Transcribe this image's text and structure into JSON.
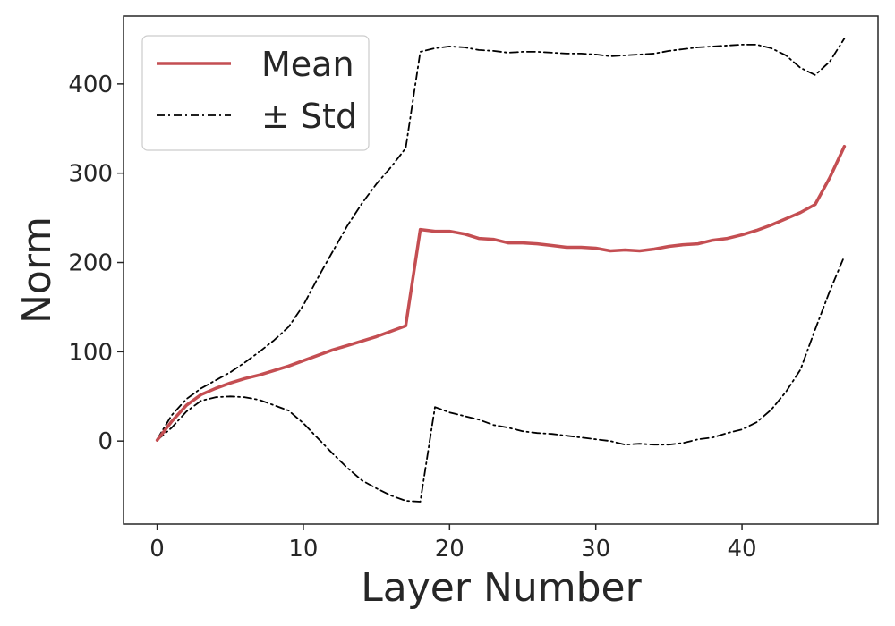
{
  "chart_data": {
    "type": "line",
    "title": "",
    "xlabel": "Layer Number",
    "ylabel": "Norm",
    "xlim": [
      -2.3,
      49.3
    ],
    "ylim": [
      -93,
      476
    ],
    "xticks": [
      0,
      10,
      20,
      30,
      40
    ],
    "yticks": [
      0,
      100,
      200,
      300,
      400
    ],
    "xtick_labels": [
      "0",
      "10",
      "20",
      "30",
      "40"
    ],
    "ytick_labels": [
      "0",
      "100",
      "200",
      "300",
      "400"
    ],
    "grid": false,
    "legend_position": "top-left",
    "x": [
      0,
      1,
      2,
      3,
      4,
      5,
      6,
      7,
      8,
      9,
      10,
      11,
      12,
      13,
      14,
      15,
      16,
      17,
      18,
      19,
      20,
      21,
      22,
      23,
      24,
      25,
      26,
      27,
      28,
      29,
      30,
      31,
      32,
      33,
      34,
      35,
      36,
      37,
      38,
      39,
      40,
      41,
      42,
      43,
      44,
      45,
      46,
      47
    ],
    "series": [
      {
        "name": "Mean",
        "color": "#c44e52",
        "style": "solid",
        "values": [
          1,
          22,
          40,
          52,
          59,
          65,
          70,
          74,
          79,
          84,
          90,
          96,
          102,
          107,
          112,
          117,
          123,
          129,
          237,
          235,
          235,
          232,
          227,
          226,
          222,
          222,
          221,
          219,
          217,
          217,
          216,
          213,
          214,
          213,
          215,
          218,
          220,
          221,
          225,
          227,
          231,
          236,
          242,
          249,
          256,
          265,
          295,
          330
        ]
      },
      {
        "name": "± Std",
        "color": "#000000",
        "style": "dashdot",
        "values": [
          2,
          29,
          47,
          59,
          68,
          77,
          88,
          100,
          113,
          128,
          152,
          183,
          212,
          241,
          266,
          288,
          307,
          328,
          436,
          440,
          442,
          441,
          438,
          437,
          435,
          436,
          436,
          435,
          434,
          434,
          433,
          431,
          432,
          433,
          434,
          437,
          439,
          441,
          442,
          443,
          444,
          444,
          440,
          432,
          418,
          410,
          425,
          451
        ]
      },
      {
        "name": "- Std",
        "color": "#000000",
        "style": "dashdot",
        "legend": false,
        "values": [
          1,
          15,
          33,
          45,
          49,
          50,
          49,
          46,
          40,
          34,
          20,
          3,
          -14,
          -30,
          -44,
          -53,
          -61,
          -67,
          -68,
          38,
          32,
          28,
          24,
          18,
          15,
          11,
          9,
          8,
          6,
          4,
          2,
          0,
          -4,
          -3,
          -4,
          -4,
          -2,
          2,
          4,
          9,
          13,
          21,
          35,
          55,
          80,
          125,
          168,
          207
        ]
      }
    ],
    "legend": [
      {
        "label": "Mean",
        "color": "#c44e52",
        "style": "solid"
      },
      {
        "label": "± Std",
        "color": "#000000",
        "style": "dashdot"
      }
    ]
  }
}
